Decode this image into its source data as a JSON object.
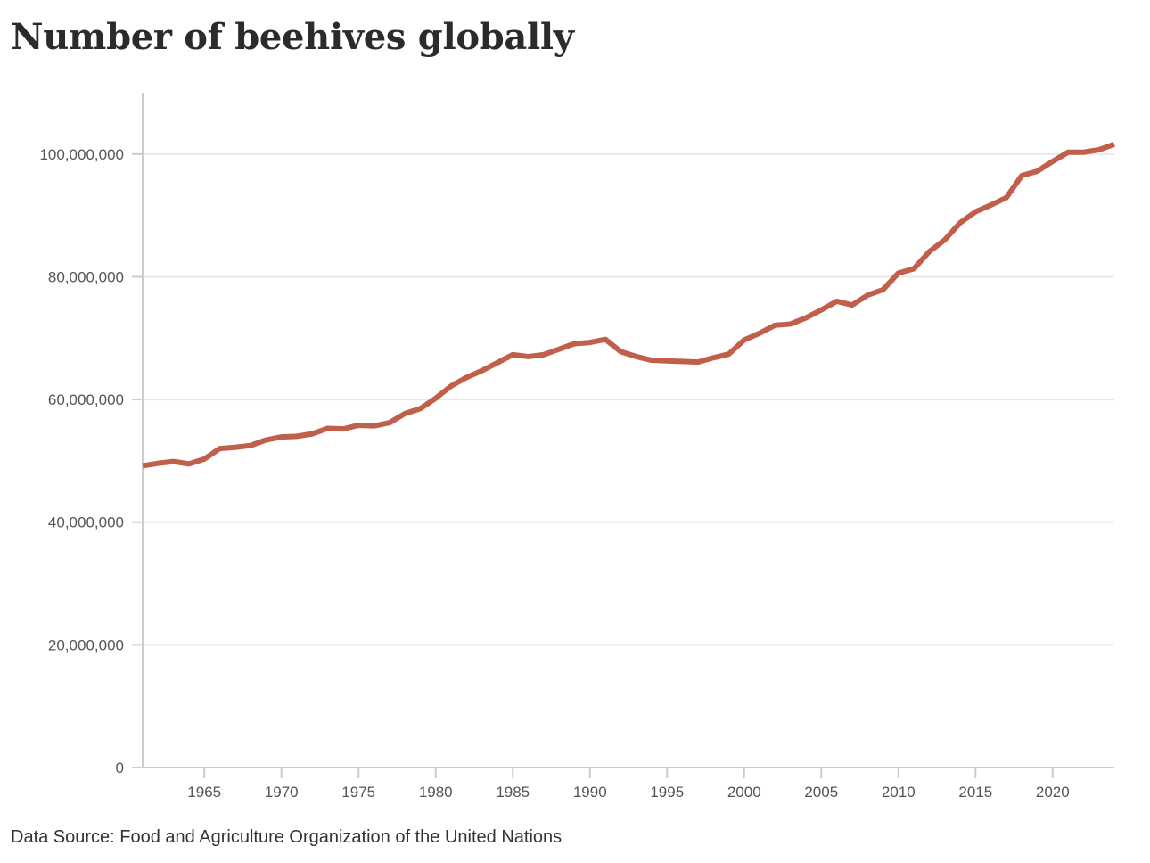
{
  "colors": {
    "line": "#c0604a",
    "grid": "#e8e8e8",
    "axis": "#cccccc",
    "text": "#555555"
  },
  "chart_data": {
    "type": "line",
    "title": "Number of beehives globally",
    "source": "Data Source: Food and Agriculture Organization of the United Nations",
    "xlabel": "",
    "ylabel": "",
    "xlim": [
      1961,
      2024
    ],
    "ylim": [
      0,
      110000000
    ],
    "grid": true,
    "legend": "none",
    "x_ticks": [
      1965,
      1970,
      1975,
      1980,
      1985,
      1990,
      1995,
      2000,
      2005,
      2010,
      2015,
      2020
    ],
    "x_tick_labels": [
      "1965",
      "1970",
      "1975",
      "1980",
      "1985",
      "1990",
      "1995",
      "2000",
      "2005",
      "2010",
      "2015",
      "2020"
    ],
    "y_ticks": [
      0,
      20000000,
      40000000,
      60000000,
      80000000,
      100000000
    ],
    "y_tick_labels": [
      "0",
      "20,000,000",
      "40,000,000",
      "60,000,000",
      "80,000,000",
      "100,000,000"
    ],
    "series": [
      {
        "name": "Beehives",
        "x": [
          1961,
          1962,
          1963,
          1964,
          1965,
          1966,
          1967,
          1968,
          1969,
          1970,
          1971,
          1972,
          1973,
          1974,
          1975,
          1976,
          1977,
          1978,
          1979,
          1980,
          1981,
          1982,
          1983,
          1984,
          1985,
          1986,
          1987,
          1988,
          1989,
          1990,
          1991,
          1992,
          1993,
          1994,
          1995,
          1996,
          1997,
          1998,
          1999,
          2000,
          2001,
          2002,
          2003,
          2004,
          2005,
          2006,
          2007,
          2008,
          2009,
          2010,
          2011,
          2012,
          2013,
          2014,
          2015,
          2016,
          2017,
          2018,
          2019,
          2020,
          2021,
          2022,
          2023,
          2024
        ],
        "values": [
          49200000,
          49600000,
          49900000,
          49500000,
          50300000,
          52000000,
          52200000,
          52500000,
          53400000,
          53900000,
          54000000,
          54400000,
          55300000,
          55200000,
          55800000,
          55700000,
          56200000,
          57700000,
          58500000,
          60200000,
          62200000,
          63600000,
          64700000,
          66000000,
          67300000,
          67000000,
          67300000,
          68200000,
          69100000,
          69300000,
          69800000,
          67800000,
          67000000,
          66400000,
          66300000,
          66200000,
          66100000,
          66800000,
          67400000,
          69700000,
          70800000,
          72100000,
          72300000,
          73300000,
          74600000,
          76000000,
          75400000,
          77000000,
          77900000,
          80600000,
          81300000,
          84100000,
          86000000,
          88800000,
          90600000,
          91700000,
          92900000,
          96500000,
          97200000,
          98800000,
          100300000,
          100300000,
          100700000,
          101600000
        ]
      }
    ]
  }
}
